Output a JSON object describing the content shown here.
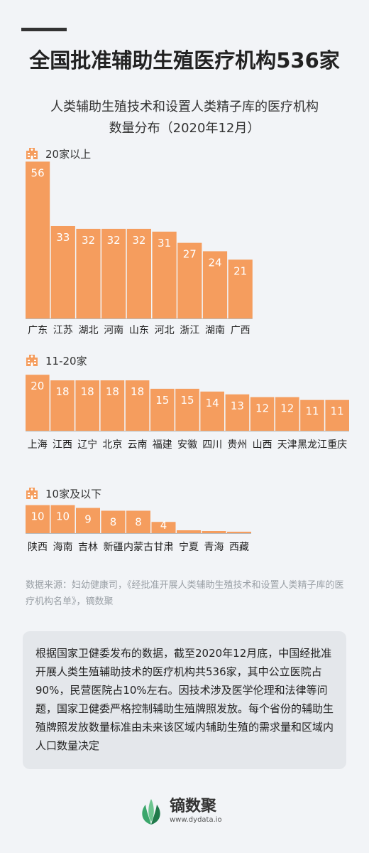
{
  "title": "全国批准辅助生殖医疗机构536家",
  "subtitle_line1": "人类辅助生殖技术和设置人类精子库的医疗机构",
  "subtitle_line2": "数量分布（2020年12月）",
  "icon": "hospital-icon",
  "colors": {
    "bar": "#f59d5e",
    "accent": "#333333",
    "panel": "#e4e7eb"
  },
  "chart_data": [
    {
      "type": "bar",
      "group_label": "20家以上",
      "categories": [
        "广东",
        "江苏",
        "湖北",
        "河南",
        "山东",
        "河北",
        "浙江",
        "湖南",
        "广西"
      ],
      "values": [
        56,
        33,
        32,
        32,
        32,
        31,
        27,
        24,
        21
      ]
    },
    {
      "type": "bar",
      "group_label": "11-20家",
      "categories": [
        "上海",
        "江西",
        "辽宁",
        "北京",
        "云南",
        "福建",
        "安徽",
        "四川",
        "贵州",
        "山西",
        "天津",
        "黑龙江",
        "重庆"
      ],
      "values": [
        20,
        18,
        18,
        18,
        18,
        15,
        15,
        14,
        13,
        12,
        12,
        11,
        11
      ]
    },
    {
      "type": "bar",
      "group_label": "10家及以下",
      "categories": [
        "陕西",
        "海南",
        "吉林",
        "新疆",
        "内蒙古",
        "甘肃",
        "宁夏",
        "青海",
        "西藏"
      ],
      "values": [
        10,
        10,
        9,
        8,
        8,
        4,
        null,
        null,
        null
      ]
    }
  ],
  "source_text": "数据来源：妇幼健康司，《经批准开展人类辅助生殖技术和设置人类精子库的医疗机构名单》，镝数聚",
  "summary_text": "根据国家卫健委发布的数据，截至2020年12月底，中国经批准开展人类生殖辅助技术的医疗机构共536家，其中公立医院占90%，民营医院占10%左右。因技术涉及医学伦理和法律等问题，国家卫健委严格控制辅助生殖牌照发放。每个省份的辅助生殖牌照发放数量标准由未来该区域内辅助生殖的需求量和区域内人口数量决定",
  "logo": {
    "name": "镝数聚",
    "url": "www.dydata.io"
  }
}
